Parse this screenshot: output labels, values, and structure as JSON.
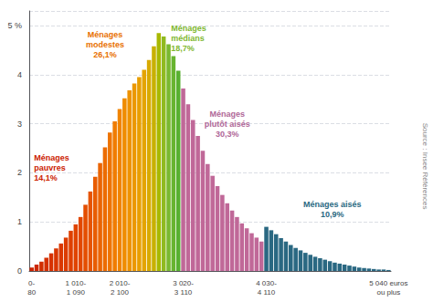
{
  "chart_data": {
    "type": "bar",
    "categories": [
      "0-\n80",
      null,
      null,
      null,
      null,
      null,
      null,
      null,
      null,
      "1 010-\n1 090",
      null,
      null,
      null,
      null,
      null,
      null,
      null,
      null,
      "2 010-\n2 100",
      null,
      null,
      null,
      null,
      null,
      null,
      null,
      null,
      null,
      null,
      null,
      null,
      "3 020-\n3 110",
      null,
      null,
      null,
      null,
      null,
      null,
      null,
      null,
      null,
      null,
      null,
      null,
      null,
      null,
      null,
      null,
      "4 030-\n4 110",
      null,
      null,
      null,
      null,
      null,
      null,
      null,
      null,
      null,
      null,
      null,
      null,
      null,
      null,
      null,
      null,
      null,
      null,
      null,
      null,
      null,
      null,
      null,
      null,
      "5 040 euros\nou plus"
    ],
    "values": [
      0.07,
      0.13,
      0.19,
      0.27,
      0.36,
      0.46,
      0.56,
      0.68,
      0.82,
      0.95,
      1.1,
      1.35,
      1.62,
      1.92,
      2.2,
      2.52,
      2.82,
      3.05,
      3.3,
      3.52,
      3.68,
      3.82,
      3.95,
      4.1,
      4.3,
      4.58,
      4.85,
      4.78,
      4.62,
      4.38,
      4.08,
      3.72,
      3.4,
      3.08,
      2.75,
      2.45,
      2.18,
      1.94,
      1.73,
      1.55,
      1.38,
      1.23,
      1.1,
      0.97,
      0.87,
      0.77,
      0.68,
      0.6,
      0.9,
      0.83,
      0.75,
      0.67,
      0.6,
      0.53,
      0.47,
      0.42,
      0.37,
      0.33,
      0.29,
      0.26,
      0.23,
      0.2,
      0.17,
      0.15,
      0.13,
      0.11,
      0.09,
      0.07,
      0.06,
      0.05,
      0.04,
      0.03,
      0.03,
      0.02
    ],
    "colors": [
      "#cc2200",
      "#cc2800",
      "#d12e00",
      "#d43000",
      "#d63200",
      "#d83500",
      "#da3800",
      "#dc3c00",
      "#de4000",
      "#e04400",
      "#e24800",
      "#e44e00",
      "#e65400",
      "#e85c00",
      "#ea6400",
      "#ec6c00",
      "#ee7400",
      "#f07c00",
      "#f08400",
      "#ef8c00",
      "#ee9200",
      "#eb9800",
      "#e89e00",
      "#e4a400",
      "#d8aa00",
      "#c8b000",
      "#a8b800",
      "#90ba20",
      "#7ab830",
      "#68b430",
      "#58b030",
      "#c06898",
      "#c06898",
      "#c06898",
      "#c06898",
      "#c06898",
      "#c06898",
      "#c06898",
      "#c06898",
      "#c06898",
      "#c06898",
      "#c06898",
      "#c06898",
      "#c06898",
      "#c06898",
      "#c06898",
      "#c06898",
      "#c06898",
      "#2a6882",
      "#2a6882",
      "#2a6882",
      "#2a6882",
      "#2a6882",
      "#2a6882",
      "#2a6882",
      "#2a6882",
      "#2a6882",
      "#2a6882",
      "#2a6882",
      "#2a6882",
      "#2a6882",
      "#2a6882",
      "#2a6882",
      "#2a6882",
      "#2a6882",
      "#2a6882",
      "#2a6882",
      "#2a6882",
      "#2a6882",
      "#2a6882",
      "#2a6882",
      "#2a6882",
      "#2a6882",
      "#2a6882"
    ],
    "ylim": [
      0,
      5.3
    ],
    "yticks": [
      0,
      1,
      2,
      3,
      4,
      {
        "value": 5,
        "label": "5 %"
      }
    ],
    "grid": true,
    "annotations": [
      {
        "text": "Ménages\npauvres\n14,1%",
        "color": "#cc2200"
      },
      {
        "text": "Ménages\nmodestes\n26,1%",
        "color": "#e87000"
      },
      {
        "text": "Ménages\nmédians\n18,7%",
        "color": "#80b830"
      },
      {
        "text": "Ménages\nplutôt aisés\n30,3%",
        "color": "#b06898"
      },
      {
        "text": "Ménages aisés\n10,9%",
        "color": "#2a6882"
      }
    ],
    "source": "Source : Insee Références"
  }
}
